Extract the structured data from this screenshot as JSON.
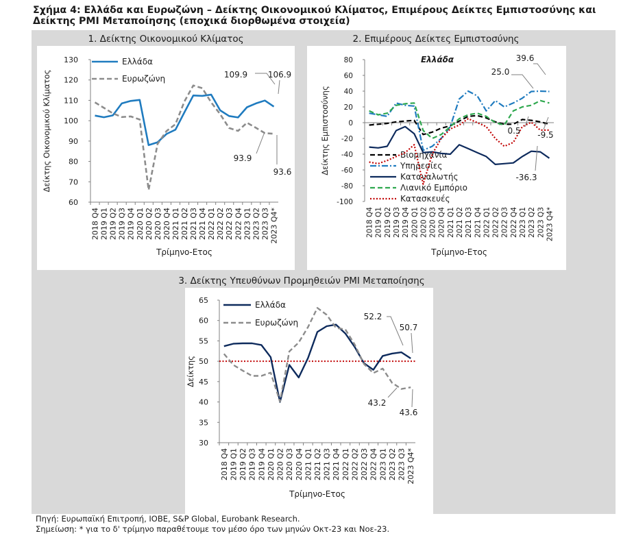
{
  "figure": {
    "title_line1": "Σχήμα 4: Ελλάδα και Ευρωζώνη – Δείκτης Οικονομικού Κλίματος, Επιμέρους Δείκτες Εμπιστοσύνης και",
    "title_line2": "Δείκτης PMI Μεταποίησης (εποχικά διορθωμένα στοιχεία)",
    "source": "Πηγή: Ευρωπαϊκή Επιτροπή, IOBE, S&P Global, Eurobank Research.",
    "note": "Σημείωση: * για το δ' τρίμηνο παραθέτουμε τον μέσο όρο των μηνών Οκτ-23 και Νοε-23."
  },
  "colors": {
    "greece": "#1f7bbf",
    "eurozone": "#8c8c8c",
    "navy": "#0d2a5c",
    "red_ref": "#c00000"
  },
  "chart_data": [
    {
      "type": "line",
      "title": "1. Δείκτης Οικονομικού Κλίματος",
      "xlabel": "Τρίμηνο-Ετος",
      "ylabel": "Δείκτης Οικονομικού Κλίματος",
      "ylim": [
        60,
        130
      ],
      "yticks": [
        "60",
        "70",
        "80",
        "90",
        "100",
        "110",
        "120",
        "130"
      ],
      "categories": [
        "2018 Q4",
        "2019 Q1",
        "2019 Q2",
        "2019 Q3",
        "2019 Q4",
        "2020 Q1",
        "2020 Q2",
        "2020 Q3",
        "2020 Q4",
        "2021 Q1",
        "2021 Q2",
        "2021 Q3",
        "2021 Q4",
        "2022 Q1",
        "2022 Q2",
        "2022 Q3",
        "2022 Q4",
        "2023 Q1",
        "2023 Q2",
        "2023 Q3",
        "2023 Q4*"
      ],
      "legend": "top-left",
      "series": [
        {
          "name": "Ελλάδα",
          "color": "#1f7bbf",
          "style": "solid",
          "values": [
            102.5,
            101.7,
            102.6,
            108.5,
            109.7,
            110.2,
            88.0,
            89.4,
            93.5,
            95.6,
            104.1,
            112.4,
            112.2,
            112.8,
            105.1,
            102.3,
            101.6,
            106.6,
            108.5,
            109.9,
            106.9
          ]
        },
        {
          "name": "Ευρωζώνη",
          "color": "#8c8c8c",
          "style": "dashed",
          "values": [
            109.0,
            106.3,
            103.6,
            101.8,
            102.1,
            100.6,
            66.0,
            88.6,
            94.9,
            98.3,
            109.4,
            117.3,
            116.0,
            109.0,
            103.2,
            96.4,
            95.0,
            99.0,
            96.5,
            93.9,
            93.6
          ]
        }
      ],
      "annotations": [
        "109.9",
        "106.9",
        "93.9",
        "93.6"
      ]
    },
    {
      "type": "line",
      "title": "2. Επιμέρους Δείκτες Εμπιστοσύνης",
      "subtitle": "Ελλάδα",
      "xlabel": "Τρίμηνο-Ετος",
      "ylabel": "Δείκτης Εμπιστοσύνης",
      "ylim": [
        -100,
        80
      ],
      "yticks": [
        "80",
        "60",
        "40",
        "20",
        "0",
        "-20",
        "-40",
        "-60",
        "-80",
        "-100"
      ],
      "categories": [
        "2018 Q4",
        "2019 Q1",
        "2019 Q2",
        "2019 Q3",
        "2019 Q4",
        "2020 Q1",
        "2020 Q2",
        "2020 Q3",
        "2020 Q4",
        "2021 Q1",
        "2021 Q2",
        "2021 Q3",
        "2021 Q4",
        "2022 Q1",
        "2022 Q2",
        "2022 Q3",
        "2022 Q4",
        "2023 Q1",
        "2023 Q2",
        "2023 Q3",
        "2023 Q4*"
      ],
      "legend": "bottom-left",
      "series": [
        {
          "name": "Βιομηχανία",
          "color": "#000000",
          "style": "dashed",
          "values": [
            -3,
            -2,
            -1,
            1,
            2,
            3,
            -15,
            -12,
            -7,
            -4,
            2,
            8,
            9,
            6,
            1,
            -2,
            -2,
            4,
            3,
            1,
            -2
          ]
        },
        {
          "name": "Υπηρεσίες",
          "color": "#1f7bbf",
          "style": "dashdot",
          "values": [
            12,
            10,
            8,
            25,
            22,
            21,
            -35,
            -30,
            -20,
            -5,
            30,
            40,
            34,
            15,
            28,
            20,
            25,
            31,
            39.6,
            40,
            39.6
          ]
        },
        {
          "name": "Καταναλωτής",
          "color": "#0d2a5c",
          "style": "solid",
          "values": [
            -31,
            -32,
            -30,
            -10,
            -5,
            -14,
            -38,
            -37,
            -39,
            -40,
            -28,
            -33,
            -38,
            -43,
            -53,
            -52,
            -51,
            -43,
            -36.3,
            -37,
            -45
          ]
        },
        {
          "name": "Λιανικό Εμπόριο",
          "color": "#2fa84f",
          "style": "dashed",
          "values": [
            15,
            10,
            12,
            22,
            24,
            25,
            -10,
            -20,
            -15,
            -5,
            5,
            10,
            12,
            8,
            0,
            -3,
            15,
            20,
            22,
            28,
            25
          ]
        },
        {
          "name": "Κατασκευές",
          "color": "#c00000",
          "style": "dotted",
          "values": [
            -50,
            -52,
            -48,
            -43,
            -38,
            -28,
            -78,
            -40,
            -20,
            -8,
            -3,
            5,
            0,
            -5,
            -20,
            -30,
            -25,
            -5,
            0.5,
            -9.5,
            -9.5
          ]
        }
      ],
      "annotations": [
        "39.6",
        "25.0",
        "0.5",
        "-9.5",
        "-36.3"
      ]
    },
    {
      "type": "line",
      "title": "3. Δείκτης Υπευθύνων Προμηθειών PMI Μεταποίησης",
      "xlabel": "Τρίμηνο-Ετος",
      "ylabel": "Δείκτης",
      "ylim": [
        30,
        65
      ],
      "yticks": [
        "30",
        "35",
        "40",
        "45",
        "50",
        "55",
        "60",
        "65"
      ],
      "reference_line": 50,
      "categories": [
        "2018 Q4",
        "2019 Q1",
        "2019 Q2",
        "2019 Q3",
        "2019 Q4",
        "2020 Q1",
        "2020 Q2",
        "2020 Q3",
        "2020 Q4",
        "2021 Q1",
        "2021 Q2",
        "2021 Q3",
        "2021 Q4",
        "2022 Q1",
        "2022 Q2",
        "2022 Q3",
        "2022 Q4",
        "2023 Q1",
        "2023 Q2",
        "2023 Q3",
        "2023 Q4*"
      ],
      "legend": "top-left",
      "series": [
        {
          "name": "Ελλάδα",
          "color": "#0d2a5c",
          "style": "solid",
          "values": [
            53.7,
            54.3,
            54.4,
            54.4,
            54.0,
            51.0,
            40.0,
            49.1,
            46.0,
            50.8,
            57.2,
            58.6,
            59.0,
            56.8,
            53.5,
            49.5,
            47.9,
            51.3,
            51.9,
            52.2,
            50.7
          ]
        },
        {
          "name": "Ευρωζώνη",
          "color": "#8c8c8c",
          "style": "dashed",
          "values": [
            51.8,
            49.1,
            47.7,
            46.4,
            46.4,
            47.2,
            40.1,
            52.4,
            54.6,
            58.4,
            63.1,
            61.4,
            58.2,
            57.8,
            54.1,
            49.3,
            47.1,
            48.2,
            44.7,
            43.2,
            43.6
          ]
        }
      ],
      "annotations": [
        "52.2",
        "50.7",
        "43.2",
        "43.6"
      ]
    }
  ]
}
